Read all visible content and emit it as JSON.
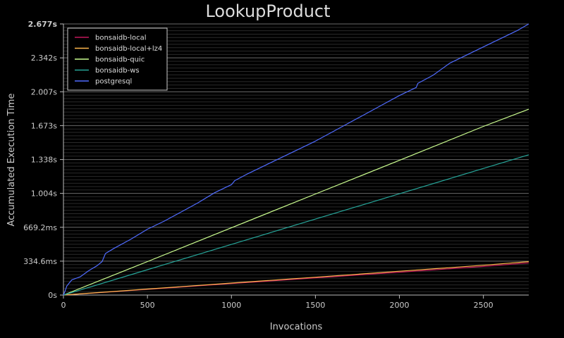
{
  "chart_data": {
    "type": "line",
    "title": "LookupProduct",
    "xlabel": "Invocations",
    "ylabel": "Accumulated Execution Time",
    "xlim": [
      0,
      2770
    ],
    "ylim": [
      0,
      2.677
    ],
    "x_ticks": [
      0,
      500,
      1000,
      1500,
      2000,
      2500
    ],
    "y_ticks": [
      {
        "value": 0,
        "label": "0s"
      },
      {
        "value": 0.3346,
        "label": "334.6ms"
      },
      {
        "value": 0.6692,
        "label": "669.2ms"
      },
      {
        "value": 1.004,
        "label": "1.004s"
      },
      {
        "value": 1.338,
        "label": "1.338s"
      },
      {
        "value": 1.673,
        "label": "1.673s"
      },
      {
        "value": 2.007,
        "label": "2.007s"
      },
      {
        "value": 2.342,
        "label": "2.342s"
      },
      {
        "value": 2.677,
        "label": "2.677s"
      }
    ],
    "grid": true,
    "legend_position": "top-left",
    "series": [
      {
        "name": "bonsaidb-local",
        "color": "#c2185b",
        "x": [
          0,
          500,
          1000,
          1500,
          2000,
          2500,
          2770
        ],
        "y": [
          0,
          0.056,
          0.113,
          0.169,
          0.225,
          0.282,
          0.318
        ]
      },
      {
        "name": "bonsaidb-local+lz4",
        "color": "#ffb74d",
        "x": [
          0,
          500,
          1000,
          1500,
          2000,
          2500,
          2770
        ],
        "y": [
          0,
          0.059,
          0.118,
          0.176,
          0.235,
          0.294,
          0.33
        ]
      },
      {
        "name": "bonsaidb-quic",
        "color": "#ccff90",
        "x": [
          0,
          500,
          1000,
          1500,
          2000,
          2500,
          2770
        ],
        "y": [
          0,
          0.33,
          0.665,
          0.998,
          1.33,
          1.665,
          1.835
        ]
      },
      {
        "name": "bonsaidb-ws",
        "color": "#26a69a",
        "x": [
          0,
          500,
          1000,
          1500,
          2000,
          2500,
          2770
        ],
        "y": [
          0,
          0.25,
          0.5,
          0.75,
          1.0,
          1.25,
          1.385
        ]
      },
      {
        "name": "postgresql",
        "color": "#4f6bff",
        "x": [
          0,
          10,
          20,
          50,
          100,
          150,
          200,
          230,
          250,
          300,
          400,
          500,
          600,
          700,
          800,
          900,
          1000,
          1020,
          1100,
          1200,
          1300,
          1400,
          1500,
          1600,
          1700,
          1800,
          1900,
          2000,
          2100,
          2110,
          2200,
          2250,
          2300,
          2400,
          2500,
          2600,
          2700,
          2770
        ],
        "y": [
          0,
          0.04,
          0.09,
          0.15,
          0.18,
          0.24,
          0.29,
          0.33,
          0.41,
          0.46,
          0.55,
          0.65,
          0.73,
          0.82,
          0.91,
          1.01,
          1.09,
          1.13,
          1.2,
          1.28,
          1.36,
          1.44,
          1.52,
          1.61,
          1.7,
          1.79,
          1.88,
          1.97,
          2.05,
          2.09,
          2.17,
          2.23,
          2.29,
          2.37,
          2.45,
          2.53,
          2.61,
          2.677
        ]
      }
    ]
  }
}
